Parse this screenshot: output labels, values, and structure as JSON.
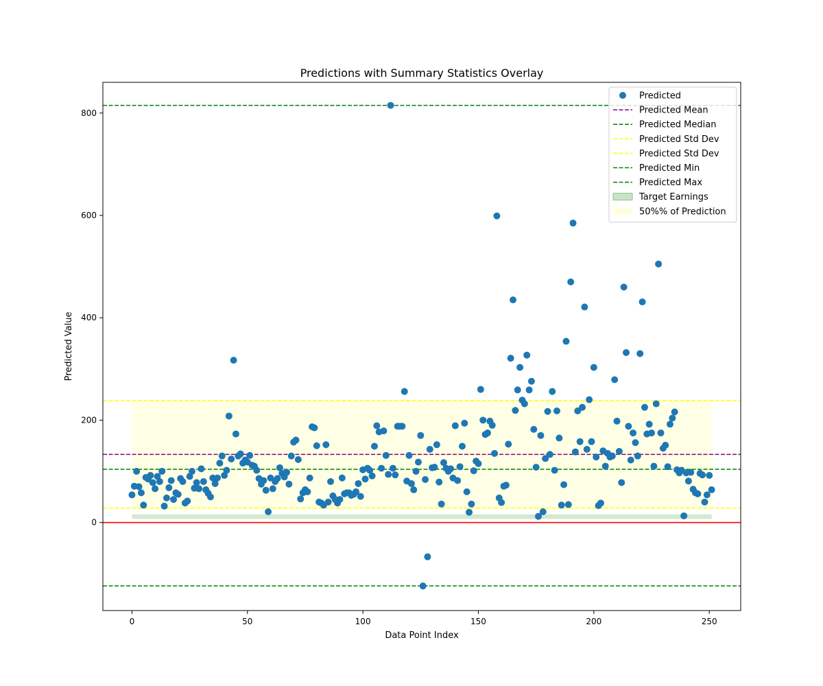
{
  "chart_data": {
    "type": "scatter",
    "title": "Predictions with Summary Statistics Overlay",
    "xlabel": "Data Point Index",
    "ylabel": "Predicted Value",
    "xlim": [
      -12.6,
      263.6
    ],
    "ylim": [
      -172,
      860
    ],
    "xticks": [
      0,
      50,
      100,
      150,
      200,
      250
    ],
    "yticks": [
      -200,
      0,
      200,
      400,
      600,
      800
    ],
    "grid": false,
    "legend_position": "upper-right",
    "legend": [
      {
        "label": "Predicted",
        "kind": "marker",
        "color": "#1f77b4"
      },
      {
        "label": "Predicted Mean",
        "kind": "dashed",
        "color": "#800080"
      },
      {
        "label": "Predicted Median",
        "kind": "dashed",
        "color": "#008000"
      },
      {
        "label": "Predicted Std Dev",
        "kind": "dashed",
        "color": "#ffff00"
      },
      {
        "label": "Predicted Std Dev",
        "kind": "dashed",
        "color": "#ffff00"
      },
      {
        "label": "Predicted Min",
        "kind": "dashed",
        "color": "#008000"
      },
      {
        "label": "Predicted Max",
        "kind": "dashed",
        "color": "#008000"
      },
      {
        "label": "Target Earnings",
        "kind": "patch",
        "color": "#c8e3c8",
        "edge": "#8fc28f"
      },
      {
        "label": "50%% of Prediction",
        "kind": "patch",
        "color": "#ffffe0",
        "edge": "#ffffe0"
      }
    ],
    "hlines": [
      {
        "name": "Predicted Mean",
        "y": 133,
        "color": "#800080",
        "dash": true
      },
      {
        "name": "Predicted Median",
        "y": 104,
        "color": "#008000",
        "dash": true
      },
      {
        "name": "Predicted Std Dev",
        "y": 238,
        "color": "#ffff00",
        "dash": true
      },
      {
        "name": "Predicted Std Dev",
        "y": 28,
        "color": "#ffff00",
        "dash": true
      },
      {
        "name": "Predicted Min",
        "y": -124,
        "color": "#008000",
        "dash": true
      },
      {
        "name": "Predicted Max",
        "y": 815,
        "color": "#008000",
        "dash": true
      },
      {
        "name": "zero-line",
        "y": 0,
        "color": "#ff0000",
        "dash": false
      }
    ],
    "bands": [
      {
        "name": "50%% of Prediction",
        "x": [
          0,
          251
        ],
        "y": [
          28,
          238
        ],
        "color": "#ffffe0",
        "opacity": 0.85
      },
      {
        "name": "Target Earnings",
        "x": [
          0,
          251
        ],
        "y": [
          7,
          16
        ],
        "color": "#2ca02c",
        "opacity": 0.22
      }
    ],
    "series": [
      {
        "name": "Predicted",
        "color": "#1f77b4",
        "points": [
          [
            0,
            54
          ],
          [
            1,
            71
          ],
          [
            2,
            100
          ],
          [
            3,
            70
          ],
          [
            4,
            58
          ],
          [
            5,
            34
          ],
          [
            6,
            88
          ],
          [
            7,
            85
          ],
          [
            8,
            92
          ],
          [
            9,
            78
          ],
          [
            10,
            66
          ],
          [
            11,
            90
          ],
          [
            12,
            80
          ],
          [
            13,
            100
          ],
          [
            14,
            32
          ],
          [
            15,
            48
          ],
          [
            16,
            68
          ],
          [
            17,
            82
          ],
          [
            18,
            45
          ],
          [
            19,
            58
          ],
          [
            20,
            55
          ],
          [
            21,
            86
          ],
          [
            22,
            80
          ],
          [
            23,
            38
          ],
          [
            24,
            42
          ],
          [
            25,
            90
          ],
          [
            26,
            100
          ],
          [
            27,
            67
          ],
          [
            28,
            78
          ],
          [
            29,
            66
          ],
          [
            30,
            105
          ],
          [
            31,
            80
          ],
          [
            32,
            64
          ],
          [
            33,
            57
          ],
          [
            34,
            50
          ],
          [
            35,
            87
          ],
          [
            36,
            76
          ],
          [
            37,
            87
          ],
          [
            38,
            116
          ],
          [
            39,
            130
          ],
          [
            40,
            92
          ],
          [
            41,
            102
          ],
          [
            42,
            208
          ],
          [
            43,
            124
          ],
          [
            44,
            317
          ],
          [
            45,
            173
          ],
          [
            46,
            130
          ],
          [
            47,
            134
          ],
          [
            48,
            116
          ],
          [
            49,
            122
          ],
          [
            50,
            118
          ],
          [
            51,
            131
          ],
          [
            52,
            112
          ],
          [
            53,
            110
          ],
          [
            54,
            102
          ],
          [
            55,
            86
          ],
          [
            56,
            75
          ],
          [
            57,
            82
          ],
          [
            58,
            63
          ],
          [
            59,
            21
          ],
          [
            60,
            87
          ],
          [
            61,
            66
          ],
          [
            62,
            80
          ],
          [
            63,
            86
          ],
          [
            64,
            107
          ],
          [
            65,
            96
          ],
          [
            66,
            89
          ],
          [
            67,
            98
          ],
          [
            68,
            75
          ],
          [
            69,
            130
          ],
          [
            70,
            157
          ],
          [
            71,
            161
          ],
          [
            72,
            123
          ],
          [
            73,
            46
          ],
          [
            74,
            58
          ],
          [
            75,
            64
          ],
          [
            76,
            60
          ],
          [
            77,
            87
          ],
          [
            78,
            187
          ],
          [
            79,
            185
          ],
          [
            80,
            150
          ],
          [
            81,
            40
          ],
          [
            82,
            38
          ],
          [
            83,
            34
          ],
          [
            84,
            152
          ],
          [
            85,
            40
          ],
          [
            86,
            80
          ],
          [
            87,
            52
          ],
          [
            88,
            45
          ],
          [
            89,
            38
          ],
          [
            90,
            45
          ],
          [
            91,
            87
          ],
          [
            92,
            56
          ],
          [
            93,
            58
          ],
          [
            94,
            58
          ],
          [
            95,
            53
          ],
          [
            96,
            55
          ],
          [
            97,
            60
          ],
          [
            98,
            76
          ],
          [
            99,
            51
          ],
          [
            100,
            103
          ],
          [
            101,
            85
          ],
          [
            102,
            106
          ],
          [
            103,
            102
          ],
          [
            104,
            91
          ],
          [
            105,
            149
          ],
          [
            106,
            189
          ],
          [
            107,
            177
          ],
          [
            108,
            106
          ],
          [
            109,
            179
          ],
          [
            110,
            131
          ],
          [
            111,
            94
          ],
          [
            112,
            815
          ],
          [
            113,
            106
          ],
          [
            114,
            93
          ],
          [
            115,
            188
          ],
          [
            116,
            188
          ],
          [
            117,
            188
          ],
          [
            118,
            256
          ],
          [
            119,
            81
          ],
          [
            120,
            131
          ],
          [
            121,
            76
          ],
          [
            122,
            64
          ],
          [
            123,
            100
          ],
          [
            124,
            118
          ],
          [
            125,
            170
          ],
          [
            126,
            -124
          ],
          [
            127,
            84
          ],
          [
            128,
            -67
          ],
          [
            129,
            143
          ],
          [
            130,
            107
          ],
          [
            131,
            108
          ],
          [
            132,
            152
          ],
          [
            133,
            79
          ],
          [
            134,
            36
          ],
          [
            135,
            117
          ],
          [
            136,
            106
          ],
          [
            137,
            100
          ],
          [
            138,
            105
          ],
          [
            139,
            87
          ],
          [
            140,
            189
          ],
          [
            141,
            82
          ],
          [
            142,
            109
          ],
          [
            143,
            149
          ],
          [
            144,
            194
          ],
          [
            145,
            60
          ],
          [
            146,
            20
          ],
          [
            147,
            36
          ],
          [
            148,
            101
          ],
          [
            149,
            120
          ],
          [
            150,
            115
          ],
          [
            151,
            260
          ],
          [
            152,
            200
          ],
          [
            153,
            172
          ],
          [
            154,
            175
          ],
          [
            155,
            198
          ],
          [
            156,
            190
          ],
          [
            157,
            135
          ],
          [
            158,
            599
          ],
          [
            159,
            48
          ],
          [
            160,
            39
          ],
          [
            161,
            71
          ],
          [
            162,
            73
          ],
          [
            163,
            153
          ],
          [
            164,
            321
          ],
          [
            165,
            435
          ],
          [
            166,
            219
          ],
          [
            167,
            259
          ],
          [
            168,
            303
          ],
          [
            169,
            239
          ],
          [
            170,
            232
          ],
          [
            171,
            327
          ],
          [
            172,
            259
          ],
          [
            173,
            276
          ],
          [
            174,
            182
          ],
          [
            175,
            108
          ],
          [
            176,
            12
          ],
          [
            177,
            170
          ],
          [
            178,
            21
          ],
          [
            179,
            125
          ],
          [
            180,
            217
          ],
          [
            181,
            133
          ],
          [
            182,
            256
          ],
          [
            183,
            102
          ],
          [
            184,
            218
          ],
          [
            185,
            165
          ],
          [
            186,
            34
          ],
          [
            187,
            74
          ],
          [
            188,
            354
          ],
          [
            189,
            35
          ],
          [
            190,
            470
          ],
          [
            191,
            585
          ],
          [
            192,
            138
          ],
          [
            193,
            218
          ],
          [
            194,
            158
          ],
          [
            195,
            225
          ],
          [
            196,
            421
          ],
          [
            197,
            143
          ],
          [
            198,
            240
          ],
          [
            199,
            158
          ],
          [
            200,
            303
          ],
          [
            201,
            128
          ],
          [
            202,
            33
          ],
          [
            203,
            38
          ],
          [
            204,
            140
          ],
          [
            205,
            110
          ],
          [
            206,
            135
          ],
          [
            207,
            128
          ],
          [
            208,
            130
          ],
          [
            209,
            279
          ],
          [
            210,
            198
          ],
          [
            211,
            139
          ],
          [
            212,
            78
          ],
          [
            213,
            460
          ],
          [
            214,
            332
          ],
          [
            215,
            188
          ],
          [
            216,
            122
          ],
          [
            217,
            175
          ],
          [
            218,
            156
          ],
          [
            219,
            130
          ],
          [
            220,
            330
          ],
          [
            221,
            431
          ],
          [
            222,
            225
          ],
          [
            223,
            173
          ],
          [
            224,
            192
          ],
          [
            225,
            175
          ],
          [
            226,
            110
          ],
          [
            227,
            232
          ],
          [
            228,
            505
          ],
          [
            229,
            175
          ],
          [
            230,
            145
          ],
          [
            231,
            151
          ],
          [
            232,
            109
          ],
          [
            233,
            192
          ],
          [
            234,
            204
          ],
          [
            235,
            216
          ],
          [
            236,
            103
          ],
          [
            237,
            97
          ],
          [
            238,
            102
          ],
          [
            239,
            13
          ],
          [
            240,
            97
          ],
          [
            241,
            81
          ],
          [
            242,
            98
          ],
          [
            243,
            65
          ],
          [
            244,
            58
          ],
          [
            245,
            56
          ],
          [
            246,
            96
          ],
          [
            247,
            93
          ],
          [
            248,
            40
          ],
          [
            249,
            54
          ],
          [
            250,
            92
          ],
          [
            251,
            64
          ]
        ]
      }
    ]
  }
}
